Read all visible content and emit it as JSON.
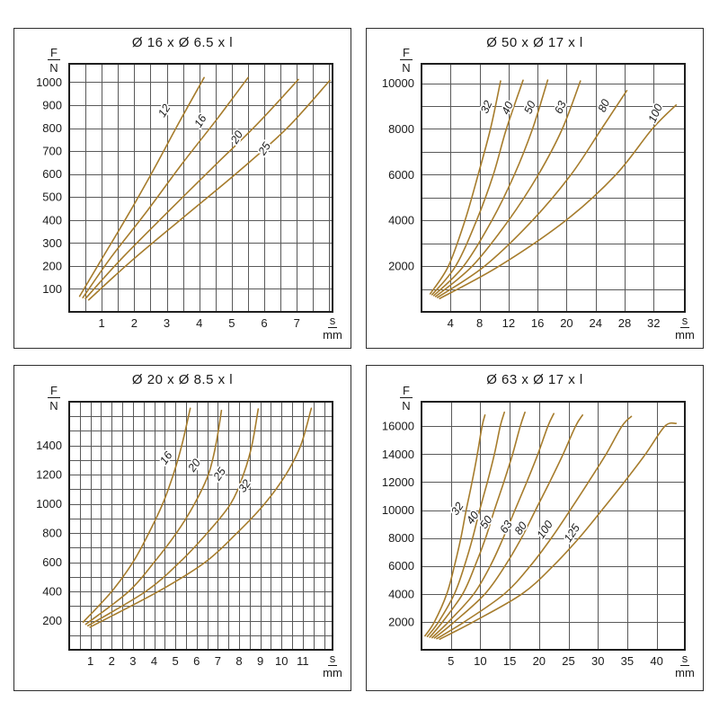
{
  "style": {
    "background": "#ffffff",
    "curve_color": "#a67c2c",
    "grid_color": "#595959",
    "frame_color": "#1f1f1f",
    "panel_border_color": "#2e2e2e",
    "text_color": "#1a1a1a",
    "curve_label_color": "#1a1a1a"
  },
  "chart_data": [
    {
      "type": "line",
      "title": "Ø 16 x Ø 6.5 x l",
      "xlabel": "s/mm",
      "ylabel": "F/N",
      "ylabel_fraction": {
        "numerator": "F",
        "denominator": "N"
      },
      "xlabel_fraction": {
        "numerator": "s",
        "denominator": "mm"
      },
      "xlim": [
        0,
        8.1
      ],
      "ylim": [
        0,
        1080
      ],
      "x_grid_step": 0.5,
      "y_grid_step": 100,
      "x_ticks": [
        1,
        2,
        3,
        4,
        5,
        6,
        7
      ],
      "y_ticks": [
        100,
        200,
        300,
        400,
        500,
        600,
        700,
        800,
        900,
        1000
      ],
      "grid": true,
      "legend_position": "labels-on-curves",
      "curve_label_angle_deg": -58,
      "series": [
        {
          "name": "12",
          "label_pos": [
            3.02,
            868
          ],
          "points": [
            [
              0.32,
              68
            ],
            [
              1.0,
              230
            ],
            [
              1.8,
              420
            ],
            [
              2.6,
              620
            ],
            [
              3.4,
              830
            ],
            [
              4.15,
              1020
            ]
          ]
        },
        {
          "name": "16",
          "label_pos": [
            4.13,
            822
          ],
          "points": [
            [
              0.42,
              62
            ],
            [
              1.3,
              240
            ],
            [
              2.4,
              440
            ],
            [
              3.5,
              650
            ],
            [
              4.55,
              840
            ],
            [
              5.5,
              1020
            ]
          ]
        },
        {
          "name": "20",
          "label_pos": [
            5.25,
            752
          ],
          "points": [
            [
              0.5,
              58
            ],
            [
              1.6,
              230
            ],
            [
              3.0,
              430
            ],
            [
              4.5,
              640
            ],
            [
              5.8,
              820
            ],
            [
              7.05,
              1012
            ]
          ]
        },
        {
          "name": "25",
          "label_pos": [
            6.1,
            702
          ],
          "points": [
            [
              0.6,
              52
            ],
            [
              1.9,
              220
            ],
            [
              3.5,
              410
            ],
            [
              5.2,
              610
            ],
            [
              6.7,
              800
            ],
            [
              8.02,
              1008
            ]
          ]
        }
      ]
    },
    {
      "type": "line",
      "title": "Ø 50 x Ø 17 x l",
      "xlabel": "s/mm",
      "ylabel": "F/N",
      "ylabel_fraction": {
        "numerator": "F",
        "denominator": "N"
      },
      "xlabel_fraction": {
        "numerator": "s",
        "denominator": "mm"
      },
      "xlim": [
        0,
        36.3
      ],
      "ylim": [
        0,
        10850
      ],
      "x_grid_step": 4,
      "y_grid_step": 1000,
      "x_ticks": [
        4,
        8,
        12,
        16,
        20,
        24,
        28,
        32
      ],
      "y_ticks": [
        2000,
        4000,
        6000,
        8000,
        10000
      ],
      "grid": true,
      "legend_position": "labels-on-curves",
      "curve_label_angle_deg": -66,
      "series": [
        {
          "name": "32",
          "label_pos": [
            9.4,
            8900
          ],
          "points": [
            [
              1.2,
              790
            ],
            [
              3.7,
              2000
            ],
            [
              6.0,
              4000
            ],
            [
              7.8,
              6000
            ],
            [
              9.5,
              8000
            ],
            [
              10.9,
              10100
            ]
          ]
        },
        {
          "name": "40",
          "label_pos": [
            12.3,
            8850
          ],
          "points": [
            [
              1.45,
              750
            ],
            [
              4.7,
              2000
            ],
            [
              7.6,
              4000
            ],
            [
              9.9,
              6000
            ],
            [
              11.7,
              8000
            ],
            [
              14.0,
              10130
            ]
          ]
        },
        {
          "name": "50",
          "label_pos": [
            15.4,
            8880
          ],
          "points": [
            [
              1.7,
              710
            ],
            [
              5.8,
              2000
            ],
            [
              9.7,
              4000
            ],
            [
              12.8,
              6000
            ],
            [
              15.3,
              8000
            ],
            [
              17.4,
              10140
            ]
          ]
        },
        {
          "name": "63",
          "label_pos": [
            19.6,
            8880
          ],
          "points": [
            [
              1.95,
              670
            ],
            [
              7.0,
              2000
            ],
            [
              12.0,
              4000
            ],
            [
              16.1,
              6000
            ],
            [
              19.4,
              8000
            ],
            [
              21.9,
              10100
            ]
          ]
        },
        {
          "name": "80",
          "label_pos": [
            25.6,
            8950
          ],
          "points": [
            [
              2.2,
              630
            ],
            [
              8.7,
              2000
            ],
            [
              15.3,
              4000
            ],
            [
              20.6,
              6000
            ],
            [
              24.8,
              8000
            ],
            [
              28.3,
              9680
            ]
          ]
        },
        {
          "name": "100",
          "label_pos": [
            32.7,
            8620
          ],
          "points": [
            [
              2.5,
              580
            ],
            [
              10.7,
              2000
            ],
            [
              19.9,
              4000
            ],
            [
              26.8,
              6000
            ],
            [
              31.8,
              8000
            ],
            [
              35.1,
              9050
            ]
          ]
        }
      ]
    },
    {
      "type": "line",
      "title": "Ø 20 x Ø 8.5 x l",
      "xlabel": "s/mm",
      "ylabel": "F/N",
      "ylabel_fraction": {
        "numerator": "F",
        "denominator": "N"
      },
      "xlabel_fraction": {
        "numerator": "s",
        "denominator": "mm"
      },
      "xlim": [
        0,
        12.4
      ],
      "ylim": [
        0,
        1700
      ],
      "x_grid_step": 0.5,
      "y_grid_step": 100,
      "x_ticks": [
        1,
        2,
        3,
        4,
        5,
        6,
        7,
        8,
        9,
        10,
        11
      ],
      "y_ticks": [
        200,
        400,
        600,
        800,
        1000,
        1200,
        1400
      ],
      "grid": true,
      "legend_position": "labels-on-curves",
      "curve_label_angle_deg": -55,
      "series": [
        {
          "name": "16",
          "label_pos": [
            4.7,
            1300
          ],
          "points": [
            [
              0.66,
              190
            ],
            [
              2.0,
              400
            ],
            [
              3.0,
              600
            ],
            [
              3.75,
              800
            ],
            [
              4.4,
              1000
            ],
            [
              4.9,
              1200
            ],
            [
              5.3,
              1400
            ],
            [
              5.7,
              1655
            ]
          ]
        },
        {
          "name": "20",
          "label_pos": [
            6.03,
            1250
          ],
          "points": [
            [
              0.78,
              175
            ],
            [
              2.8,
              400
            ],
            [
              4.0,
              600
            ],
            [
              5.05,
              800
            ],
            [
              5.9,
              1000
            ],
            [
              6.55,
              1200
            ],
            [
              6.9,
              1400
            ],
            [
              7.17,
              1640
            ]
          ]
        },
        {
          "name": "25",
          "label_pos": [
            7.22,
            1190
          ],
          "points": [
            [
              0.88,
              165
            ],
            [
              3.6,
              400
            ],
            [
              5.2,
              600
            ],
            [
              6.5,
              800
            ],
            [
              7.6,
              1000
            ],
            [
              8.2,
              1200
            ],
            [
              8.6,
              1400
            ],
            [
              8.9,
              1650
            ]
          ]
        },
        {
          "name": "32",
          "label_pos": [
            8.4,
            1108
          ],
          "points": [
            [
              0.98,
              155
            ],
            [
              4.2,
              400
            ],
            [
              6.4,
              600
            ],
            [
              7.9,
              800
            ],
            [
              9.2,
              1000
            ],
            [
              10.2,
              1200
            ],
            [
              10.9,
              1400
            ],
            [
              11.4,
              1655
            ]
          ]
        }
      ]
    },
    {
      "type": "line",
      "title": "Ø 63 x Ø 17 x l",
      "xlabel": "s/mm",
      "ylabel": "F/N",
      "ylabel_fraction": {
        "numerator": "F",
        "denominator": "N"
      },
      "xlabel_fraction": {
        "numerator": "s",
        "denominator": "mm"
      },
      "xlim": [
        0,
        44.8
      ],
      "ylim": [
        0,
        17750
      ],
      "x_grid_step": 5,
      "y_grid_step": 2000,
      "x_ticks": [
        5,
        10,
        15,
        20,
        25,
        30,
        35,
        40
      ],
      "y_ticks": [
        2000,
        4000,
        6000,
        8000,
        10000,
        12000,
        14000,
        16000
      ],
      "grid": true,
      "legend_position": "labels-on-curves",
      "curve_label_angle_deg": -56,
      "series": [
        {
          "name": "32",
          "label_pos": [
            6.6,
            9950
          ],
          "points": [
            [
              0.6,
              1000
            ],
            [
              2.2,
              2000
            ],
            [
              4.3,
              4000
            ],
            [
              5.6,
              6000
            ],
            [
              6.7,
              8000
            ],
            [
              7.6,
              10000
            ],
            [
              8.6,
              12000
            ],
            [
              9.5,
              14000
            ],
            [
              10.3,
              16000
            ],
            [
              10.8,
              16800
            ]
          ]
        },
        {
          "name": "40",
          "label_pos": [
            9.2,
            9300
          ],
          "points": [
            [
              1.0,
              950
            ],
            [
              2.9,
              2000
            ],
            [
              5.6,
              4000
            ],
            [
              7.3,
              6000
            ],
            [
              8.7,
              8000
            ],
            [
              9.9,
              10000
            ],
            [
              11.2,
              12000
            ],
            [
              12.4,
              14000
            ],
            [
              13.4,
              16000
            ],
            [
              14.1,
              17000
            ]
          ]
        },
        {
          "name": "50",
          "label_pos": [
            11.5,
            8980
          ],
          "points": [
            [
              1.4,
              900
            ],
            [
              3.6,
              2000
            ],
            [
              7.0,
              4000
            ],
            [
              9.1,
              6000
            ],
            [
              10.9,
              8000
            ],
            [
              12.4,
              10000
            ],
            [
              14.0,
              12000
            ],
            [
              15.5,
              14000
            ],
            [
              16.8,
              16000
            ],
            [
              17.6,
              17000
            ]
          ]
        },
        {
          "name": "63",
          "label_pos": [
            14.9,
            8650
          ],
          "points": [
            [
              1.8,
              870
            ],
            [
              4.6,
              2000
            ],
            [
              8.9,
              4000
            ],
            [
              11.7,
              6000
            ],
            [
              13.9,
              8000
            ],
            [
              15.9,
              10000
            ],
            [
              17.9,
              12000
            ],
            [
              19.8,
              14000
            ],
            [
              21.5,
              16000
            ],
            [
              22.5,
              16900
            ]
          ]
        },
        {
          "name": "80",
          "label_pos": [
            17.4,
            8550
          ],
          "points": [
            [
              2.2,
              840
            ],
            [
              5.6,
              2000
            ],
            [
              10.8,
              4000
            ],
            [
              14.2,
              6000
            ],
            [
              17.0,
              8000
            ],
            [
              19.4,
              10000
            ],
            [
              21.8,
              12000
            ],
            [
              24.1,
              14000
            ],
            [
              26.2,
              16000
            ],
            [
              27.4,
              16800
            ]
          ]
        },
        {
          "name": "100",
          "label_pos": [
            21.5,
            8450
          ],
          "points": [
            [
              2.6,
              800
            ],
            [
              7.3,
              2000
            ],
            [
              14.1,
              4000
            ],
            [
              18.5,
              6000
            ],
            [
              22.1,
              8000
            ],
            [
              25.3,
              10000
            ],
            [
              28.4,
              12000
            ],
            [
              31.4,
              14000
            ],
            [
              34.1,
              16000
            ],
            [
              35.7,
              16700
            ]
          ]
        },
        {
          "name": "125",
          "label_pos": [
            26.1,
            8200
          ],
          "points": [
            [
              3.1,
              760
            ],
            [
              8.8,
              2000
            ],
            [
              17.1,
              4000
            ],
            [
              22.4,
              6000
            ],
            [
              26.8,
              8000
            ],
            [
              30.7,
              10000
            ],
            [
              34.5,
              12000
            ],
            [
              38.1,
              14000
            ],
            [
              41.4,
              16000
            ],
            [
              43.3,
              16200
            ]
          ]
        }
      ]
    }
  ]
}
